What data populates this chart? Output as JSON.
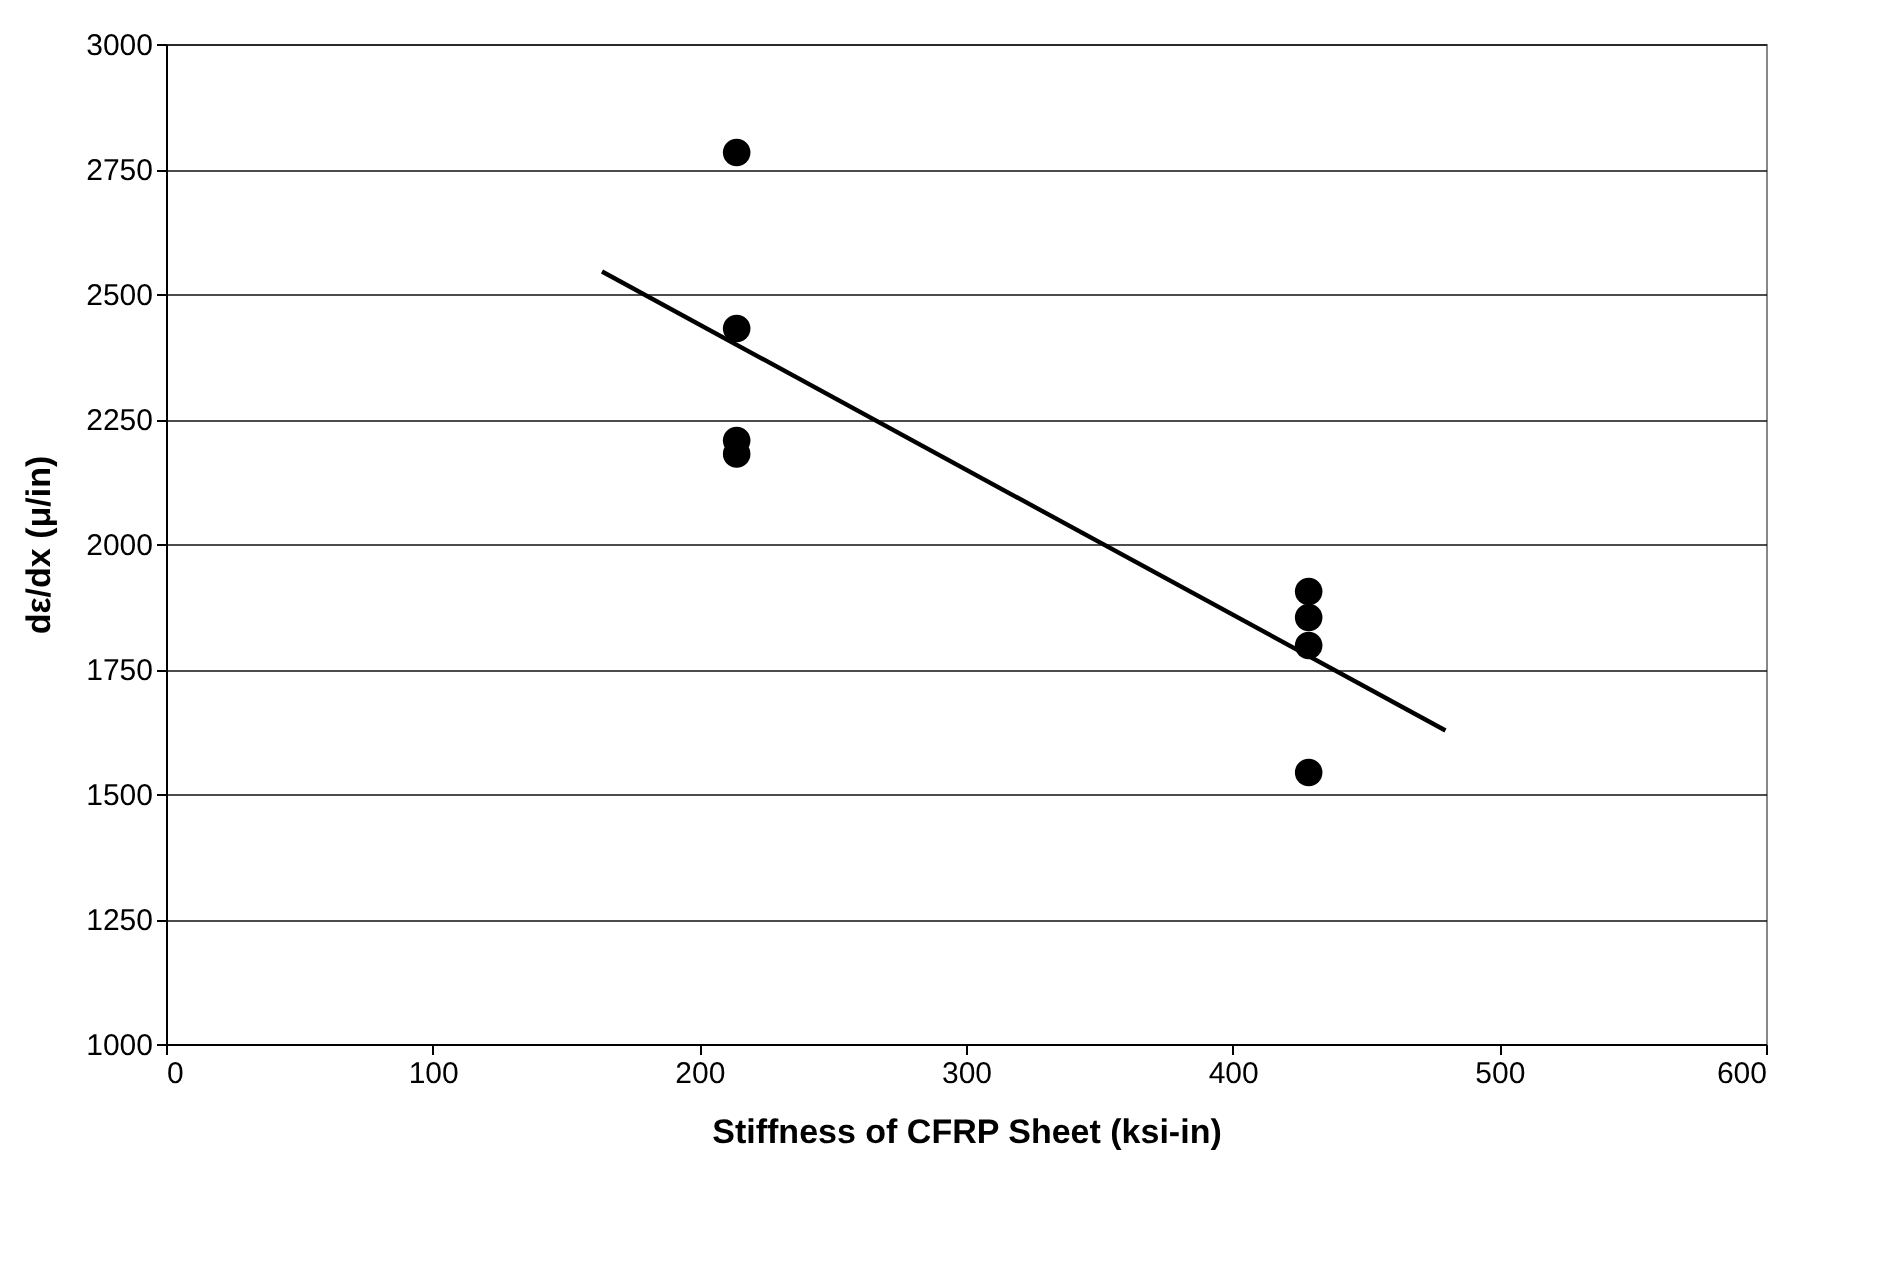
{
  "chart_data": {
    "type": "scatter",
    "xlabel": "Stiffness of CFRP Sheet (ksi-in)",
    "ylabel": "dε/dx (μ/in)",
    "series": [
      {
        "color": "#000000",
        "marker": "circle",
        "x": [
          214,
          214,
          214,
          214,
          428.5,
          428.5,
          428.5,
          428.5
        ],
        "values": [
          2783,
          2431,
          2207,
          2180,
          1905,
          1853,
          1797,
          1543
        ]
      },
      {
        "type": "line",
        "color": "#000000",
        "line_style": "solid",
        "x": [
          163.5,
          479.8
        ],
        "values": [
          2545,
          1627
        ]
      }
    ],
    "xlim": [
      0,
      600
    ],
    "xticks": [
      0,
      100,
      200,
      300,
      400,
      500,
      600
    ],
    "ylim": [
      1000,
      3000
    ],
    "yticks": [
      1000,
      1250,
      1500,
      1750,
      2000,
      2250,
      2500,
      2750,
      3000
    ],
    "grid": "y"
  }
}
